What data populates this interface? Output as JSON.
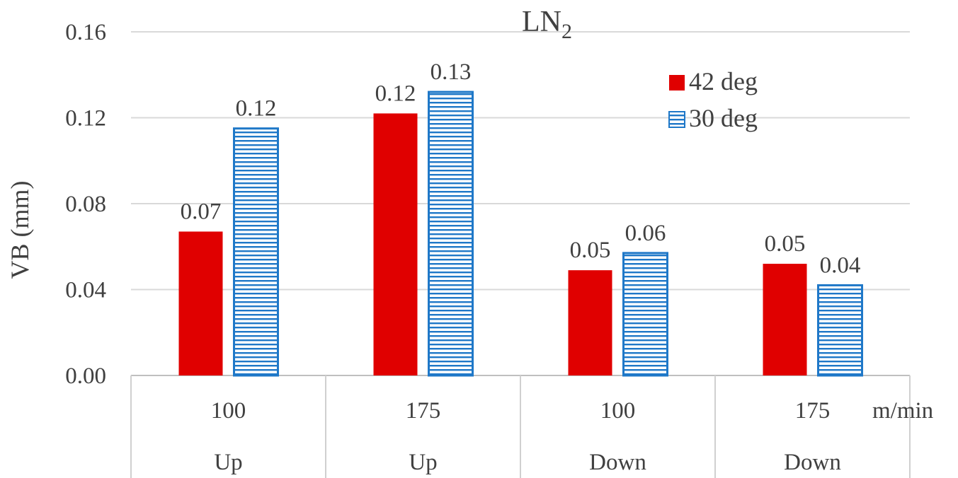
{
  "chart_data": {
    "type": "bar",
    "title": "LN",
    "title_subscript": "2",
    "ylabel": "VB (mm)",
    "xunit": "m/min",
    "ylim": [
      0,
      0.16
    ],
    "yticks": [
      0.0,
      0.04,
      0.08,
      0.12,
      0.16
    ],
    "ytick_labels": [
      "0.00",
      "0.04",
      "0.08",
      "0.12",
      "0.16"
    ],
    "grid": true,
    "legend_position": "top-right",
    "categories": [
      {
        "speed": "100",
        "direction": "Up"
      },
      {
        "speed": "175",
        "direction": "Up"
      },
      {
        "speed": "100",
        "direction": "Down"
      },
      {
        "speed": "175",
        "direction": "Down"
      }
    ],
    "series": [
      {
        "name": "42 deg",
        "color": "#E00000",
        "pattern": "solid",
        "values": [
          0.067,
          0.122,
          0.049,
          0.052
        ],
        "labels": [
          "0.07",
          "0.12",
          "0.05",
          "0.05"
        ]
      },
      {
        "name": "30 deg",
        "color": "#1F78C8",
        "pattern": "horizontal-lines",
        "values": [
          0.115,
          0.132,
          0.057,
          0.042
        ],
        "labels": [
          "0.12",
          "0.13",
          "0.06",
          "0.04"
        ]
      }
    ]
  }
}
